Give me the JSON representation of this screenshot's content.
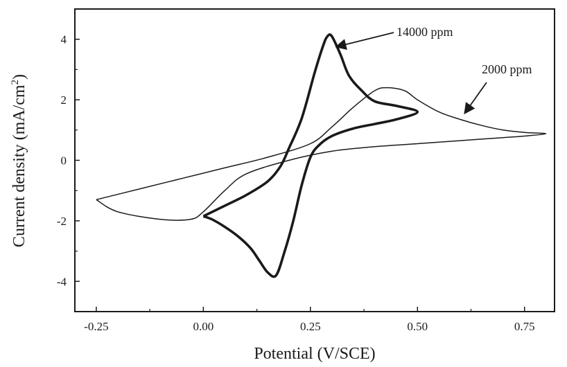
{
  "chart_data": {
    "type": "line",
    "title": "",
    "xlabel": "Potential (V/SCE)",
    "ylabel_main": "Current density (mA/cm",
    "ylabel_sup": "2",
    "ylabel_close": ")",
    "xlim": [
      -0.3,
      0.82
    ],
    "ylim": [
      -5,
      5
    ],
    "xticks": [
      -0.25,
      0.0,
      0.25,
      0.5,
      0.75
    ],
    "xtick_labels": [
      "-0.25",
      "0.00",
      "0.25",
      "0.50",
      "0.75"
    ],
    "yticks": [
      -4,
      -2,
      0,
      2,
      4
    ],
    "ytick_labels": [
      "-4",
      "-2",
      "0",
      "2",
      "4"
    ],
    "grid": false,
    "line_color": "#1a1a1a",
    "series": [
      {
        "name": "14000 ppm",
        "style": "thick",
        "x": [
          0.0,
          0.05,
          0.1,
          0.15,
          0.18,
          0.2,
          0.23,
          0.26,
          0.28,
          0.29,
          0.3,
          0.32,
          0.34,
          0.37,
          0.4,
          0.45,
          0.5,
          0.45,
          0.4,
          0.35,
          0.3,
          0.27,
          0.25,
          0.23,
          0.21,
          0.19,
          0.17,
          0.15,
          0.13,
          0.11,
          0.08,
          0.05,
          0.02,
          0.0
        ],
        "y": [
          -1.85,
          -1.5,
          -1.15,
          -0.7,
          -0.2,
          0.4,
          1.4,
          2.9,
          3.8,
          4.1,
          4.1,
          3.5,
          2.8,
          2.3,
          1.95,
          1.8,
          1.6,
          1.35,
          1.2,
          1.05,
          0.8,
          0.5,
          0.1,
          -0.8,
          -2.0,
          -3.0,
          -3.8,
          -3.7,
          -3.3,
          -2.9,
          -2.5,
          -2.2,
          -1.95,
          -1.85
        ]
      },
      {
        "name": "2000 ppm",
        "style": "thin",
        "x": [
          -0.25,
          -0.15,
          -0.05,
          0.05,
          0.15,
          0.25,
          0.3,
          0.35,
          0.4,
          0.43,
          0.47,
          0.5,
          0.55,
          0.6,
          0.65,
          0.7,
          0.75,
          0.8,
          0.75,
          0.7,
          0.6,
          0.5,
          0.4,
          0.3,
          0.2,
          0.1,
          0.05,
          0.0,
          -0.03,
          -0.1,
          -0.2,
          -0.25
        ],
        "y": [
          -1.3,
          -0.95,
          -0.6,
          -0.25,
          0.1,
          0.55,
          1.1,
          1.75,
          2.3,
          2.4,
          2.3,
          2.0,
          1.6,
          1.35,
          1.15,
          1.0,
          0.92,
          0.88,
          0.8,
          0.75,
          0.65,
          0.55,
          0.45,
          0.3,
          0.0,
          -0.45,
          -1.0,
          -1.7,
          -1.95,
          -1.95,
          -1.7,
          -1.3
        ]
      }
    ],
    "annotations": [
      {
        "text": "14000 ppm",
        "series": 0
      },
      {
        "text": "2000 ppm",
        "series": 1
      }
    ]
  }
}
